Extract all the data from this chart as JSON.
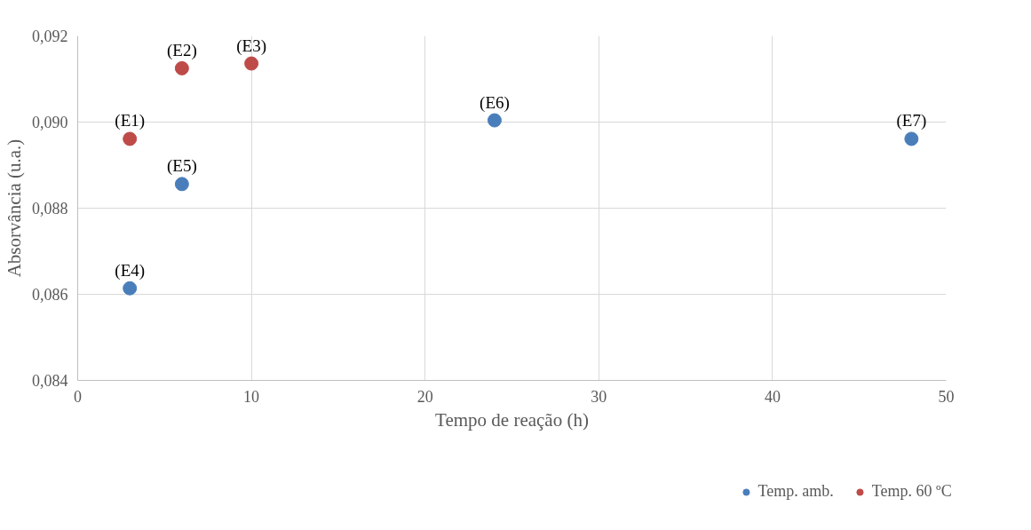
{
  "chart_data": {
    "type": "scatter",
    "xlabel": "Tempo de reação (h)",
    "ylabel": "Absorvância (u.a.)",
    "series": [
      {
        "name": "Temp. amb.",
        "color": "#4a7ebb",
        "x": [
          3,
          6,
          24,
          48
        ],
        "values": [
          0.08614,
          0.08856,
          0.09004,
          0.08961
        ]
      },
      {
        "name": "Temp. 60 ºC",
        "color": "#be4b48",
        "x": [
          3,
          6,
          10
        ],
        "values": [
          0.08961,
          0.09125,
          0.09136
        ]
      }
    ],
    "annotations": [
      {
        "text": "(E1)",
        "x": 3,
        "y": 0.08961
      },
      {
        "text": "(E2)",
        "x": 6,
        "y": 0.09125
      },
      {
        "text": "(E3)",
        "x": 10,
        "y": 0.09136
      },
      {
        "text": "(E4)",
        "x": 3,
        "y": 0.08614
      },
      {
        "text": "(E5)",
        "x": 6,
        "y": 0.08856
      },
      {
        "text": "(E6)",
        "x": 24,
        "y": 0.09004
      },
      {
        "text": "(E7)",
        "x": 48,
        "y": 0.08961
      }
    ],
    "xlim": [
      0,
      50
    ],
    "xticks": [
      0,
      10,
      20,
      30,
      40,
      50
    ],
    "ylim": [
      0.084,
      0.092
    ],
    "yticks": [
      {
        "value": 0.084,
        "label": "0,084"
      },
      {
        "value": 0.086,
        "label": "0,086"
      },
      {
        "value": 0.088,
        "label": "0,088"
      },
      {
        "value": 0.09,
        "label": "0,090"
      },
      {
        "value": 0.092,
        "label": "0,092"
      }
    ],
    "grid": true,
    "legend": "bottom",
    "marker": "circle"
  }
}
